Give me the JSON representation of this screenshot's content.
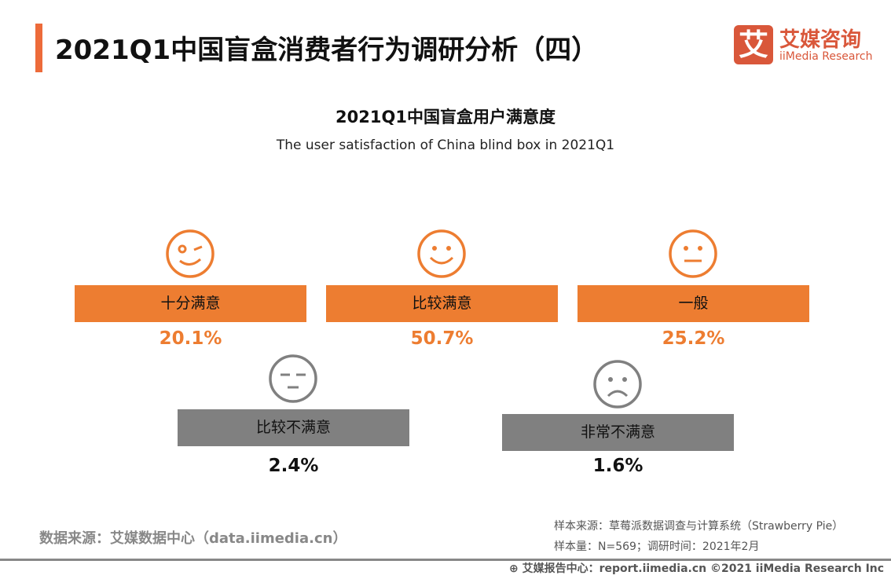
{
  "header": {
    "title": "2021Q1中国盲盒消费者行为调研分析（四）",
    "logo_cn": "艾媒咨询",
    "logo_en": "iiMedia Research",
    "logo_mark": "艾"
  },
  "colors": {
    "positive": "#ED7D31",
    "negative": "#808080",
    "brand": "#D9573A"
  },
  "chart_data": {
    "type": "table",
    "title": "2021Q1中国盲盒用户满意度",
    "subtitle": "The user satisfaction of China blind box in 2021Q1",
    "categories": [
      "十分满意",
      "比较满意",
      "一般",
      "比较不满意",
      "非常不满意"
    ],
    "values": [
      20.1,
      50.7,
      25.2,
      2.4,
      1.6
    ],
    "labels": [
      "20.1%",
      "50.7%",
      "25.2%",
      "2.4%",
      "1.6%"
    ],
    "icons": [
      "wink-face-icon",
      "smile-face-icon",
      "neutral-face-icon",
      "sleepy-face-icon",
      "sad-face-icon"
    ]
  },
  "footer": {
    "source": "数据来源：艾媒数据中心（data.iimedia.cn）",
    "sample_source": "样本来源：草莓派数据调查与计算系统（Strawberry Pie）",
    "sample_size": "样本量：N=569；调研时间：2021年2月",
    "copyright": "艾媒报告中心：report.iimedia.cn  ©2021  iiMedia Research  Inc"
  }
}
